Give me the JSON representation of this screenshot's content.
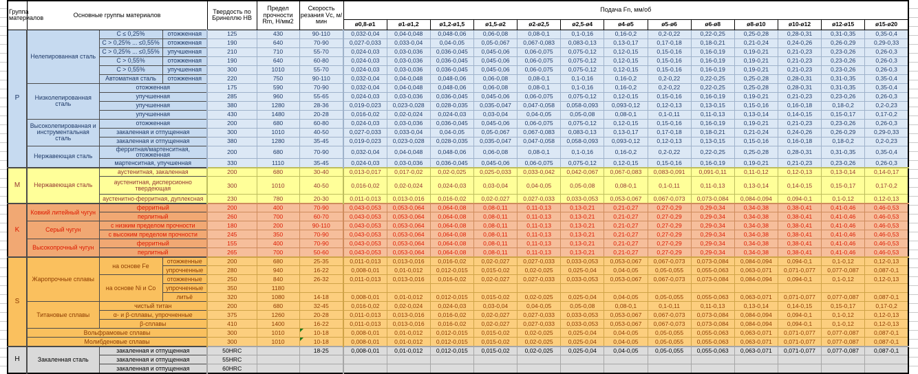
{
  "header": {
    "group": "Группа материалов",
    "main_groups": "Основные группы материалов",
    "hardness": "Твердость по Бринеллю HB",
    "strength": "Предел прочности Rm, Н/мм2",
    "speed": "Скорость резания Vc, м/мин",
    "feed": "Подача Fn, мм/об",
    "diameters": [
      "ø0,8-ø1",
      "ø1-ø1,2",
      "ø1,2-ø1,5",
      "ø1,5-ø2",
      "ø2-ø2,5",
      "ø2,5-ø4",
      "ø4-ø5",
      "ø5-ø6",
      "ø6-ø8",
      "ø8-ø10",
      "ø10-ø12",
      "ø12-ø15",
      "ø15-ø20"
    ]
  },
  "colors": {
    "section_P_bg": "#DCE8F5",
    "section_P_label_bg": "#C6DAF0",
    "section_P_text": "#1F3A68",
    "section_M_bg": "#FFFF99",
    "section_M_text": "#943634",
    "section_K_bg": "#F6BE9B",
    "section_K_label_bg": "#F1A873",
    "section_K_text": "#DD1A00",
    "section_S_bg": "#FCCE7E",
    "section_S_label_bg": "#FAC05E",
    "section_S_text": "#8E3B00",
    "section_H_bg": "#DCDCDC",
    "flag_marker": "#1D7A1D"
  },
  "feed_sets": {
    "FA": [
      "0,032-0,04",
      "0,04-0,048",
      "0,048-0,06",
      "0,06-0,08",
      "0,08-0,1",
      "0,1-0,16",
      "0,16-0,2",
      "0,2-0,22",
      "0,22-0,25",
      "0,25-0,28",
      "0,28-0,31",
      "0,31-0,35",
      "0,35-0,4"
    ],
    "FB": [
      "0,027-0,033",
      "0,033-0,04",
      "0,04-0,05",
      "0,05-0,067",
      "0,067-0,083",
      "0,083-0,13",
      "0,13-0,17",
      "0,17-0,18",
      "0,18-0,21",
      "0,21-0,24",
      "0,24-0,26",
      "0,26-0,29",
      "0,29-0,33"
    ],
    "FC": [
      "0,024-0,03",
      "0,03-0,036",
      "0,036-0,045",
      "0,045-0,06",
      "0,06-0,075",
      "0,075-0,12",
      "0,12-0,15",
      "0,15-0,16",
      "0,16-0,19",
      "0,19-0,21",
      "0,21-0,23",
      "0,23-0,26",
      "0,26-0,3"
    ],
    "FD": [
      "0,019-0,023",
      "0,023-0,028",
      "0,028-0,035",
      "0,035-0,047",
      "0,047-0,058",
      "0,058-0,093",
      "0,093-0,12",
      "0,12-0,13",
      "0,13-0,15",
      "0,15-0,16",
      "0,16-0,18",
      "0,18-0,2",
      "0,2-0,23"
    ],
    "FE": [
      "0,016-0,02",
      "0,02-0,024",
      "0,024-0,03",
      "0,03-0,04",
      "0,04-0,05",
      "0,05-0,08",
      "0,08-0,1",
      "0,1-0,11",
      "0,11-0,13",
      "0,13-0,14",
      "0,14-0,15",
      "0,15-0,17",
      "0,17-0,2"
    ],
    "FM": [
      "0,013-0,017",
      "0,017-0,02",
      "0,02-0,025",
      "0,025-0,033",
      "0,033-0,042",
      "0,042-0,067",
      "0,067-0,083",
      "0,083-0,091",
      "0,091-0,11",
      "0,11-0,12",
      "0,12-0,13",
      "0,13-0,14",
      "0,14-0,17"
    ],
    "FS1": [
      "0,011-0,013",
      "0,013-0,016",
      "0,016-0,02",
      "0,02-0,027",
      "0,027-0,033",
      "0,033-0,053",
      "0,053-0,067",
      "0,067-0,073",
      "0,073-0,084",
      "0,084-0,094",
      "0,094-0,1",
      "0,1-0,12",
      "0,12-0,13"
    ],
    "FS2": [
      "0,008-0,01",
      "0,01-0,012",
      "0,012-0,015",
      "0,015-0,02",
      "0,02-0,025",
      "0,025-0,04",
      "0,04-0,05",
      "0,05-0,055",
      "0,055-0,063",
      "0,063-0,071",
      "0,071-0,077",
      "0,077-0,087",
      "0,087-0,1"
    ],
    "FK": [
      "0,043-0,053",
      "0,053-0,064",
      "0,064-0,08",
      "0,08-0,11",
      "0,11-0,13",
      "0,13-0,21",
      "0,21-0,27",
      "0,27-0,29",
      "0,29-0,34",
      "0,34-0,38",
      "0,38-0,41",
      "0,41-0,46",
      "0,46-0,53"
    ],
    "E0": [
      "",
      "",
      "",
      "",
      "",
      "",
      "",
      "",
      "",
      "",
      "",
      "",
      ""
    ]
  },
  "rows": [
    {
      "sec": "p",
      "labels": [
        {
          "t": "P",
          "cls": "grp",
          "rs": 15
        },
        {
          "t": "Нелепированная сталь",
          "cls": "mat",
          "rs": 6
        },
        {
          "t": "C ≤ 0,25%",
          "cls": "sub"
        },
        {
          "t": "отожженная",
          "cls": "sub"
        }
      ],
      "hb": "125",
      "rm": "430",
      "vc": "90-110",
      "fs": "FA"
    },
    {
      "sec": "p",
      "labels": [
        {
          "t": "C > 0,25% ... ≤0,55%",
          "cls": "sub"
        },
        {
          "t": "отожженная",
          "cls": "sub"
        }
      ],
      "hb": "190",
      "rm": "640",
      "vc": "70-90",
      "fs": "FB"
    },
    {
      "sec": "p",
      "labels": [
        {
          "t": "C > 0,25% ... ≤0,55%",
          "cls": "sub"
        },
        {
          "t": "упучшенная",
          "cls": "sub"
        }
      ],
      "hb": "210",
      "rm": "710",
      "vc": "55-70",
      "fs": "FC"
    },
    {
      "sec": "p",
      "labels": [
        {
          "t": "C > 0,55%",
          "cls": "sub"
        },
        {
          "t": "отожженная",
          "cls": "sub"
        }
      ],
      "hb": "190",
      "rm": "640",
      "vc": "60-80",
      "fs": "FC"
    },
    {
      "sec": "p",
      "labels": [
        {
          "t": "C > 0,55%",
          "cls": "sub"
        },
        {
          "t": "упучшенная",
          "cls": "sub"
        }
      ],
      "hb": "300",
      "rm": "1010",
      "vc": "55-70",
      "fs": "FC"
    },
    {
      "sec": "p",
      "labels": [
        {
          "t": "Автоматная сталь",
          "cls": "sub"
        },
        {
          "t": "отожженная",
          "cls": "sub"
        }
      ],
      "hb": "220",
      "rm": "750",
      "vc": "90-110",
      "fs": "FA"
    },
    {
      "sec": "p",
      "labels": [
        {
          "t": "Низколепированная сталь",
          "cls": "mat",
          "rs": 4
        },
        {
          "t": "отожженная",
          "cls": "sub",
          "cs": 2
        }
      ],
      "hb": "175",
      "rm": "590",
      "vc": "70-90",
      "fs": "FA"
    },
    {
      "sec": "p",
      "labels": [
        {
          "t": "упучшенная",
          "cls": "sub",
          "cs": 2
        }
      ],
      "hb": "285",
      "rm": "960",
      "vc": "55-65",
      "fs": "FC"
    },
    {
      "sec": "p",
      "labels": [
        {
          "t": "упучшенная",
          "cls": "sub",
          "cs": 2
        }
      ],
      "hb": "380",
      "rm": "1280",
      "vc": "28-36",
      "fs": "FD"
    },
    {
      "sec": "p",
      "labels": [
        {
          "t": "упучшенная",
          "cls": "sub",
          "cs": 2
        }
      ],
      "hb": "430",
      "rm": "1480",
      "vc": "20-28",
      "fs": "FE"
    },
    {
      "sec": "p",
      "labels": [
        {
          "t": "Высоколепированная и инструментальная сталь",
          "cls": "mat",
          "rs": 3
        },
        {
          "t": "отожженная",
          "cls": "sub",
          "cs": 2
        }
      ],
      "hb": "200",
      "rm": "680",
      "vc": "60-80",
      "fs": "FC"
    },
    {
      "sec": "p",
      "labels": [
        {
          "t": "закаленная и отпущенная",
          "cls": "sub",
          "cs": 2
        }
      ],
      "hb": "300",
      "rm": "1010",
      "vc": "40-50",
      "fs": "FB"
    },
    {
      "sec": "p",
      "labels": [
        {
          "t": "закаленная и отпущенная",
          "cls": "sub",
          "cs": 2
        }
      ],
      "hb": "380",
      "rm": "1280",
      "vc": "35-45",
      "fs": "FD"
    },
    {
      "sec": "p",
      "labels": [
        {
          "t": "Нержавеющая сталь",
          "cls": "mat",
          "rs": 2
        },
        {
          "t": "ферритная/мартенситная, отожженная",
          "cls": "sub",
          "cs": 2
        }
      ],
      "hb": "200",
      "rm": "680",
      "vc": "70-90",
      "fs": "FA"
    },
    {
      "sec": "p",
      "labels": [
        {
          "t": "мартенситная, упучшенная",
          "cls": "sub",
          "cs": 2
        }
      ],
      "hb": "330",
      "rm": "1110",
      "vc": "35-45",
      "fs": "FC"
    },
    {
      "sec": "m",
      "labels": [
        {
          "t": "M",
          "cls": "grp",
          "rs": 3
        },
        {
          "t": "Нержавеющая сталь",
          "cls": "mat",
          "rs": 3
        },
        {
          "t": "аустенитная, закаленная",
          "cls": "sub",
          "cs": 2
        }
      ],
      "hb": "200",
      "rm": "680",
      "vc": "30-40",
      "fs": "FM"
    },
    {
      "sec": "m",
      "h": 2,
      "labels": [
        {
          "t": "аустенитная, дисперсионно твердеющая",
          "cls": "sub",
          "cs": 2
        }
      ],
      "hb": "300",
      "rm": "1010",
      "vc": "40-50",
      "fs": "FE"
    },
    {
      "sec": "m",
      "labels": [
        {
          "t": "аустенитно-ферритная, дуплексная",
          "cls": "sub",
          "cs": 2
        }
      ],
      "hb": "230",
      "rm": "780",
      "vc": "20-30",
      "fs": "FS1"
    },
    {
      "sec": "k",
      "labels": [
        {
          "t": "K",
          "cls": "grp",
          "rs": 6
        },
        {
          "t": "Ковкий литейный чугун",
          "cls": "mat",
          "rs": 2
        },
        {
          "t": "ферритный",
          "cls": "sub",
          "cs": 2
        }
      ],
      "hb": "200",
      "rm": "400",
      "vc": "70-90",
      "fs": "FK"
    },
    {
      "sec": "k",
      "labels": [
        {
          "t": "перлитный",
          "cls": "sub",
          "cs": 2
        }
      ],
      "hb": "260",
      "rm": "700",
      "vc": "60-70",
      "fs": "FK"
    },
    {
      "sec": "k",
      "labels": [
        {
          "t": "Серый чугун",
          "cls": "mat",
          "rs": 2
        },
        {
          "t": "с низким пределом прочности",
          "cls": "sub",
          "cs": 2
        }
      ],
      "hb": "180",
      "rm": "200",
      "vc": "90-110",
      "fs": "FK"
    },
    {
      "sec": "k",
      "labels": [
        {
          "t": "с высоким пределом прочности",
          "cls": "sub",
          "cs": 2
        }
      ],
      "hb": "245",
      "rm": "350",
      "vc": "70-90",
      "fs": "FK"
    },
    {
      "sec": "k",
      "labels": [
        {
          "t": "Высокопрочный чугун",
          "cls": "mat",
          "rs": 2
        },
        {
          "t": "ферритный",
          "cls": "sub",
          "cs": 2
        }
      ],
      "hb": "155",
      "rm": "400",
      "vc": "70-90",
      "fs": "FK"
    },
    {
      "sec": "k",
      "labels": [
        {
          "t": "перлитный",
          "cls": "sub",
          "cs": 2
        }
      ],
      "hb": "265",
      "rm": "700",
      "vc": "50-60",
      "fs": "FK"
    },
    {
      "sec": "s",
      "labels": [
        {
          "t": "S",
          "cls": "grp",
          "rs": 10
        },
        {
          "t": "Жаропрочные сплавы",
          "cls": "mat",
          "rs": 5
        },
        {
          "t": "на основе Fe",
          "cls": "sub",
          "rs": 2
        },
        {
          "t": "отожженные",
          "cls": "sub"
        }
      ],
      "hb": "200",
      "rm": "680",
      "vc": "25-35",
      "fs": "FS1"
    },
    {
      "sec": "s",
      "labels": [
        {
          "t": "упрочненные",
          "cls": "sub"
        }
      ],
      "hb": "280",
      "rm": "940",
      "vc": "16-22",
      "fs": "FS2"
    },
    {
      "sec": "s",
      "labels": [
        {
          "t": "на основе Ni и Co",
          "cls": "sub",
          "rs": 3
        },
        {
          "t": "отожженные",
          "cls": "sub"
        }
      ],
      "hb": "250",
      "rm": "840",
      "vc": "26-32",
      "fs": "FS1"
    },
    {
      "sec": "s",
      "labels": [
        {
          "t": "упрочненные",
          "cls": "sub"
        }
      ],
      "hb": "350",
      "rm": "1180",
      "vc": "",
      "fs": "E0"
    },
    {
      "sec": "s",
      "labels": [
        {
          "t": "литьё",
          "cls": "sub"
        }
      ],
      "hb": "320",
      "rm": "1080",
      "vc": "14-18",
      "fs": "FS2"
    },
    {
      "sec": "s",
      "labels": [
        {
          "t": "Титановые сплавы",
          "cls": "mat",
          "rs": 3
        },
        {
          "t": "чистый титан",
          "cls": "sub",
          "cs": 2
        }
      ],
      "hb": "200",
      "rm": "680",
      "vc": "32-45",
      "fs": "FE"
    },
    {
      "sec": "s",
      "labels": [
        {
          "t": "α- и β-сплавы, упрочненные",
          "cls": "sub",
          "cs": 2
        }
      ],
      "hb": "375",
      "rm": "1260",
      "vc": "20-28",
      "fs": "FS1"
    },
    {
      "sec": "s",
      "labels": [
        {
          "t": "β-сплавы",
          "cls": "sub",
          "cs": 2
        }
      ],
      "hb": "410",
      "rm": "1400",
      "vc": "16-22",
      "fs": "FS1"
    },
    {
      "sec": "s",
      "labels": [
        {
          "t": "Вольфрамовые сплавы",
          "cls": "mat",
          "cs": 3
        }
      ],
      "hb": "300",
      "rm": "1010",
      "vc": "10-18",
      "fs": "FS2",
      "flag": true
    },
    {
      "sec": "s",
      "labels": [
        {
          "t": "Молибденовые сплавы",
          "cls": "mat",
          "cs": 3
        }
      ],
      "hb": "300",
      "rm": "1010",
      "vc": "10-18",
      "fs": "FS2",
      "flag": true
    },
    {
      "sec": "h",
      "labels": [
        {
          "t": "H",
          "cls": "grp",
          "rs": 3
        },
        {
          "t": "Закаленная сталь",
          "cls": "mat",
          "rs": 3
        },
        {
          "t": "закаленная и отпущенная",
          "cls": "sub",
          "cs": 2
        }
      ],
      "hb": "50HRC",
      "rm": "",
      "vc": "18-25",
      "fs": "FS2"
    },
    {
      "sec": "h",
      "labels": [
        {
          "t": "закаленная и отпущенная",
          "cls": "sub",
          "cs": 2
        }
      ],
      "hb": "55HRC",
      "rm": "",
      "vc": "",
      "fs": "E0"
    },
    {
      "sec": "h",
      "labels": [
        {
          "t": "закаленная и отпущенная",
          "cls": "sub",
          "cs": 2
        }
      ],
      "hb": "60HRC",
      "rm": "",
      "vc": "",
      "fs": "E0"
    }
  ]
}
